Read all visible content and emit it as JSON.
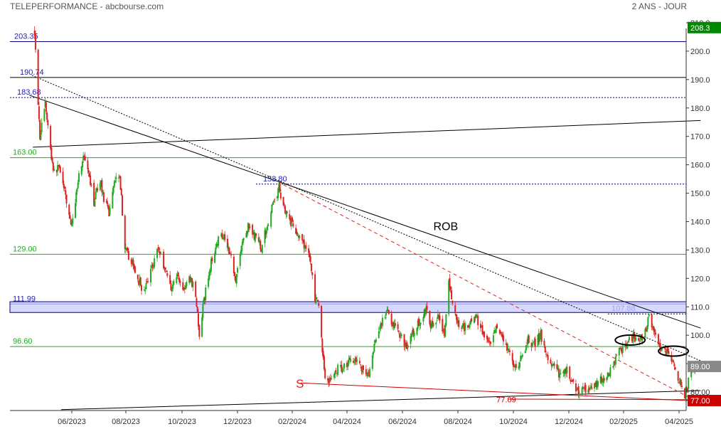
{
  "header": {
    "title": "TELEPERFORMANCE - abcbourse.com",
    "period": "2 ANS - JOUR"
  },
  "colors": {
    "up": "#22aa22",
    "down": "#dd2222",
    "support_line": "#22aa22",
    "resistance_line": "#000000",
    "level_label": "#2222bb",
    "zone": "#c8ccff",
    "current_price_bg": "#888888",
    "last_price_bg": "#cc0000",
    "axis_text": "#333333"
  },
  "chart_data": {
    "type": "candlestick",
    "title": "TELEPERFORMANCE - abcbourse.com",
    "period": "2 ANS - JOUR",
    "x_ticks": [
      "06/2023",
      "08/2023",
      "10/2023",
      "12/2023",
      "02/2024",
      "04/2024",
      "06/2024",
      "08/2024",
      "10/2024",
      "12/2024",
      "02/2025",
      "04/2025"
    ],
    "y_ticks": [
      "80.00",
      "90.00",
      "100.0",
      "110.0",
      "120.0",
      "130.0",
      "140.0",
      "150.0",
      "160.0",
      "170.0",
      "180.0",
      "190.0",
      "200.0",
      "210.0"
    ],
    "ylim": [
      73.5,
      213
    ],
    "price_path": [
      [
        "2023-04-20",
        207
      ],
      [
        "2023-04-26",
        170
      ],
      [
        "2023-05-02",
        182
      ],
      [
        "2023-05-08",
        165
      ],
      [
        "2023-05-12",
        157
      ],
      [
        "2023-05-18",
        160
      ],
      [
        "2023-05-24",
        150
      ],
      [
        "2023-06-01",
        138
      ],
      [
        "2023-06-08",
        155
      ],
      [
        "2023-06-14",
        163
      ],
      [
        "2023-06-20",
        156
      ],
      [
        "2023-06-26",
        147
      ],
      [
        "2023-07-03",
        155
      ],
      [
        "2023-07-07",
        148
      ],
      [
        "2023-07-13",
        143
      ],
      [
        "2023-07-19",
        155
      ],
      [
        "2023-07-25",
        157
      ],
      [
        "2023-07-31",
        130
      ],
      [
        "2023-08-07",
        126
      ],
      [
        "2023-08-14",
        120
      ],
      [
        "2023-08-21",
        115
      ],
      [
        "2023-08-28",
        123
      ],
      [
        "2023-09-05",
        131
      ],
      [
        "2023-09-12",
        124
      ],
      [
        "2023-09-19",
        117
      ],
      [
        "2023-09-26",
        121
      ],
      [
        "2023-10-03",
        116
      ],
      [
        "2023-10-10",
        120
      ],
      [
        "2023-10-16",
        115
      ],
      [
        "2023-10-20",
        99
      ],
      [
        "2023-10-25",
        112
      ],
      [
        "2023-11-01",
        124
      ],
      [
        "2023-11-08",
        133
      ],
      [
        "2023-11-15",
        136
      ],
      [
        "2023-11-22",
        130
      ],
      [
        "2023-11-29",
        120
      ],
      [
        "2023-12-06",
        132
      ],
      [
        "2023-12-13",
        138
      ],
      [
        "2023-12-20",
        135
      ],
      [
        "2023-12-28",
        131
      ],
      [
        "2024-01-05",
        140
      ],
      [
        "2024-01-11",
        147
      ],
      [
        "2024-01-17",
        152
      ],
      [
        "2024-01-23",
        145
      ],
      [
        "2024-01-29",
        141
      ],
      [
        "2024-02-05",
        137
      ],
      [
        "2024-02-12",
        132
      ],
      [
        "2024-02-19",
        130
      ],
      [
        "2024-02-26",
        113
      ],
      [
        "2024-03-01",
        110
      ],
      [
        "2024-03-05",
        95
      ],
      [
        "2024-03-08",
        85
      ],
      [
        "2024-03-14",
        84
      ],
      [
        "2024-03-21",
        88
      ],
      [
        "2024-03-28",
        89
      ],
      [
        "2024-04-04",
        91
      ],
      [
        "2024-04-11",
        92
      ],
      [
        "2024-04-18",
        88
      ],
      [
        "2024-04-25",
        86
      ],
      [
        "2024-05-02",
        97
      ],
      [
        "2024-05-09",
        105
      ],
      [
        "2024-05-16",
        108
      ],
      [
        "2024-05-23",
        103
      ],
      [
        "2024-05-30",
        100
      ],
      [
        "2024-06-06",
        96
      ],
      [
        "2024-06-13",
        101
      ],
      [
        "2024-06-20",
        105
      ],
      [
        "2024-06-27",
        109
      ],
      [
        "2024-07-04",
        102
      ],
      [
        "2024-07-11",
        108
      ],
      [
        "2024-07-17",
        100
      ],
      [
        "2024-07-22",
        118
      ],
      [
        "2024-07-26",
        111
      ],
      [
        "2024-08-01",
        104
      ],
      [
        "2024-08-08",
        103
      ],
      [
        "2024-08-15",
        105
      ],
      [
        "2024-08-22",
        106
      ],
      [
        "2024-08-29",
        100
      ],
      [
        "2024-09-05",
        96
      ],
      [
        "2024-09-12",
        102
      ],
      [
        "2024-09-19",
        98
      ],
      [
        "2024-09-26",
        94
      ],
      [
        "2024-10-03",
        88
      ],
      [
        "2024-10-10",
        92
      ],
      [
        "2024-10-17",
        98
      ],
      [
        "2024-10-24",
        97
      ],
      [
        "2024-10-31",
        100
      ],
      [
        "2024-11-07",
        92
      ],
      [
        "2024-11-14",
        89
      ],
      [
        "2024-11-21",
        86
      ],
      [
        "2024-11-28",
        88
      ],
      [
        "2024-12-05",
        84
      ],
      [
        "2024-12-12",
        80
      ],
      [
        "2024-12-19",
        81
      ],
      [
        "2024-12-27",
        82
      ],
      [
        "2025-01-06",
        84
      ],
      [
        "2025-01-13",
        85
      ],
      [
        "2025-01-20",
        89
      ],
      [
        "2025-01-27",
        94
      ],
      [
        "2025-02-03",
        97
      ],
      [
        "2025-02-10",
        99
      ],
      [
        "2025-02-17",
        98
      ],
      [
        "2025-02-24",
        101
      ],
      [
        "2025-02-28",
        107
      ],
      [
        "2025-03-05",
        101
      ],
      [
        "2025-03-12",
        96
      ],
      [
        "2025-03-19",
        94
      ],
      [
        "2025-03-26",
        89
      ],
      [
        "2025-04-02",
        84
      ],
      [
        "2025-04-07",
        78
      ],
      [
        "2025-04-10",
        82
      ],
      [
        "2025-04-14",
        88
      ],
      [
        "2025-04-18",
        89
      ]
    ],
    "levels": [
      {
        "label": "203.35",
        "value": 203.35,
        "style": "solid",
        "color": "#000080"
      },
      {
        "label": "190.74",
        "value": 190.74,
        "style": "solid",
        "color": "#000000"
      },
      {
        "label": "183.68",
        "value": 183.68,
        "style": "dotted",
        "color": "#000080"
      },
      {
        "label": "163.00",
        "value": 162.5,
        "style": "solid",
        "color": "#22aa22"
      },
      {
        "label": "153.80",
        "value": 153.2,
        "style": "dotted",
        "color": "#000080"
      },
      {
        "label": "129.00",
        "value": 128.5,
        "style": "solid",
        "color": "#22aa22"
      },
      {
        "label": "111.99",
        "value": 111.0,
        "style": "solid",
        "color": "#000080"
      },
      {
        "label": "107.88",
        "value": 107.5,
        "style": "dotted",
        "color": "#000080"
      },
      {
        "label": "96.60",
        "value": 96.0,
        "style": "solid",
        "color": "#22aa22"
      }
    ],
    "zone": {
      "from": 108.0,
      "to": 111.8
    },
    "trendlines": [
      {
        "name": "ROB",
        "from": [
          "2023-04-14",
          184.5
        ],
        "to": [
          "2025-04-24",
          102.5
        ],
        "style": "solid",
        "color": "#000000"
      },
      {
        "from": [
          "2023-04-17",
          191.5
        ],
        "to": [
          "2025-04-24",
          91.0
        ],
        "style": "dotted",
        "color": "#000000"
      },
      {
        "from": [
          "2023-04-18",
          166.2
        ],
        "to": [
          "2025-04-24",
          175.6
        ],
        "style": "solid",
        "color": "#000000"
      },
      {
        "from": [
          "2023-05-20",
          73.8
        ],
        "to": [
          "2025-04-24",
          80.5
        ],
        "style": "solid",
        "color": "#000000"
      },
      {
        "name": "S",
        "from": [
          "2024-02-10",
          83.2
        ],
        "to": [
          "2025-04-24",
          76.8
        ],
        "style": "solid",
        "color": "#cc0000"
      },
      {
        "from": [
          "2024-01-22",
          153.0
        ],
        "to": [
          "2025-04-24",
          76.0
        ],
        "style": "dashed",
        "color": "#dd2222"
      },
      {
        "from": [
          "2024-09-25",
          77.5
        ],
        "to": [
          "2025-04-24",
          77.3
        ],
        "style": "solid",
        "color": "#cc0000"
      }
    ],
    "low_label": {
      "text": "77.09",
      "date": "2024-09-28",
      "value": 77.09
    },
    "annotations": [
      {
        "text": "ROB",
        "date": "2024-07-05",
        "value": 137
      },
      {
        "text": "S",
        "date": "2024-02-05",
        "value": 81.5
      }
    ],
    "ellipses": [
      {
        "center_date": "2025-02-08",
        "value": 98.3
      },
      {
        "center_date": "2025-03-26",
        "value": 94.4
      }
    ],
    "axis_markers": [
      {
        "label": "208.3",
        "value": 208.3,
        "color": "#008800"
      },
      {
        "label": "89.00",
        "value": 89.0,
        "color": "#888888"
      },
      {
        "label": "77.00",
        "value": 77.0,
        "color": "#cc0000"
      }
    ]
  }
}
